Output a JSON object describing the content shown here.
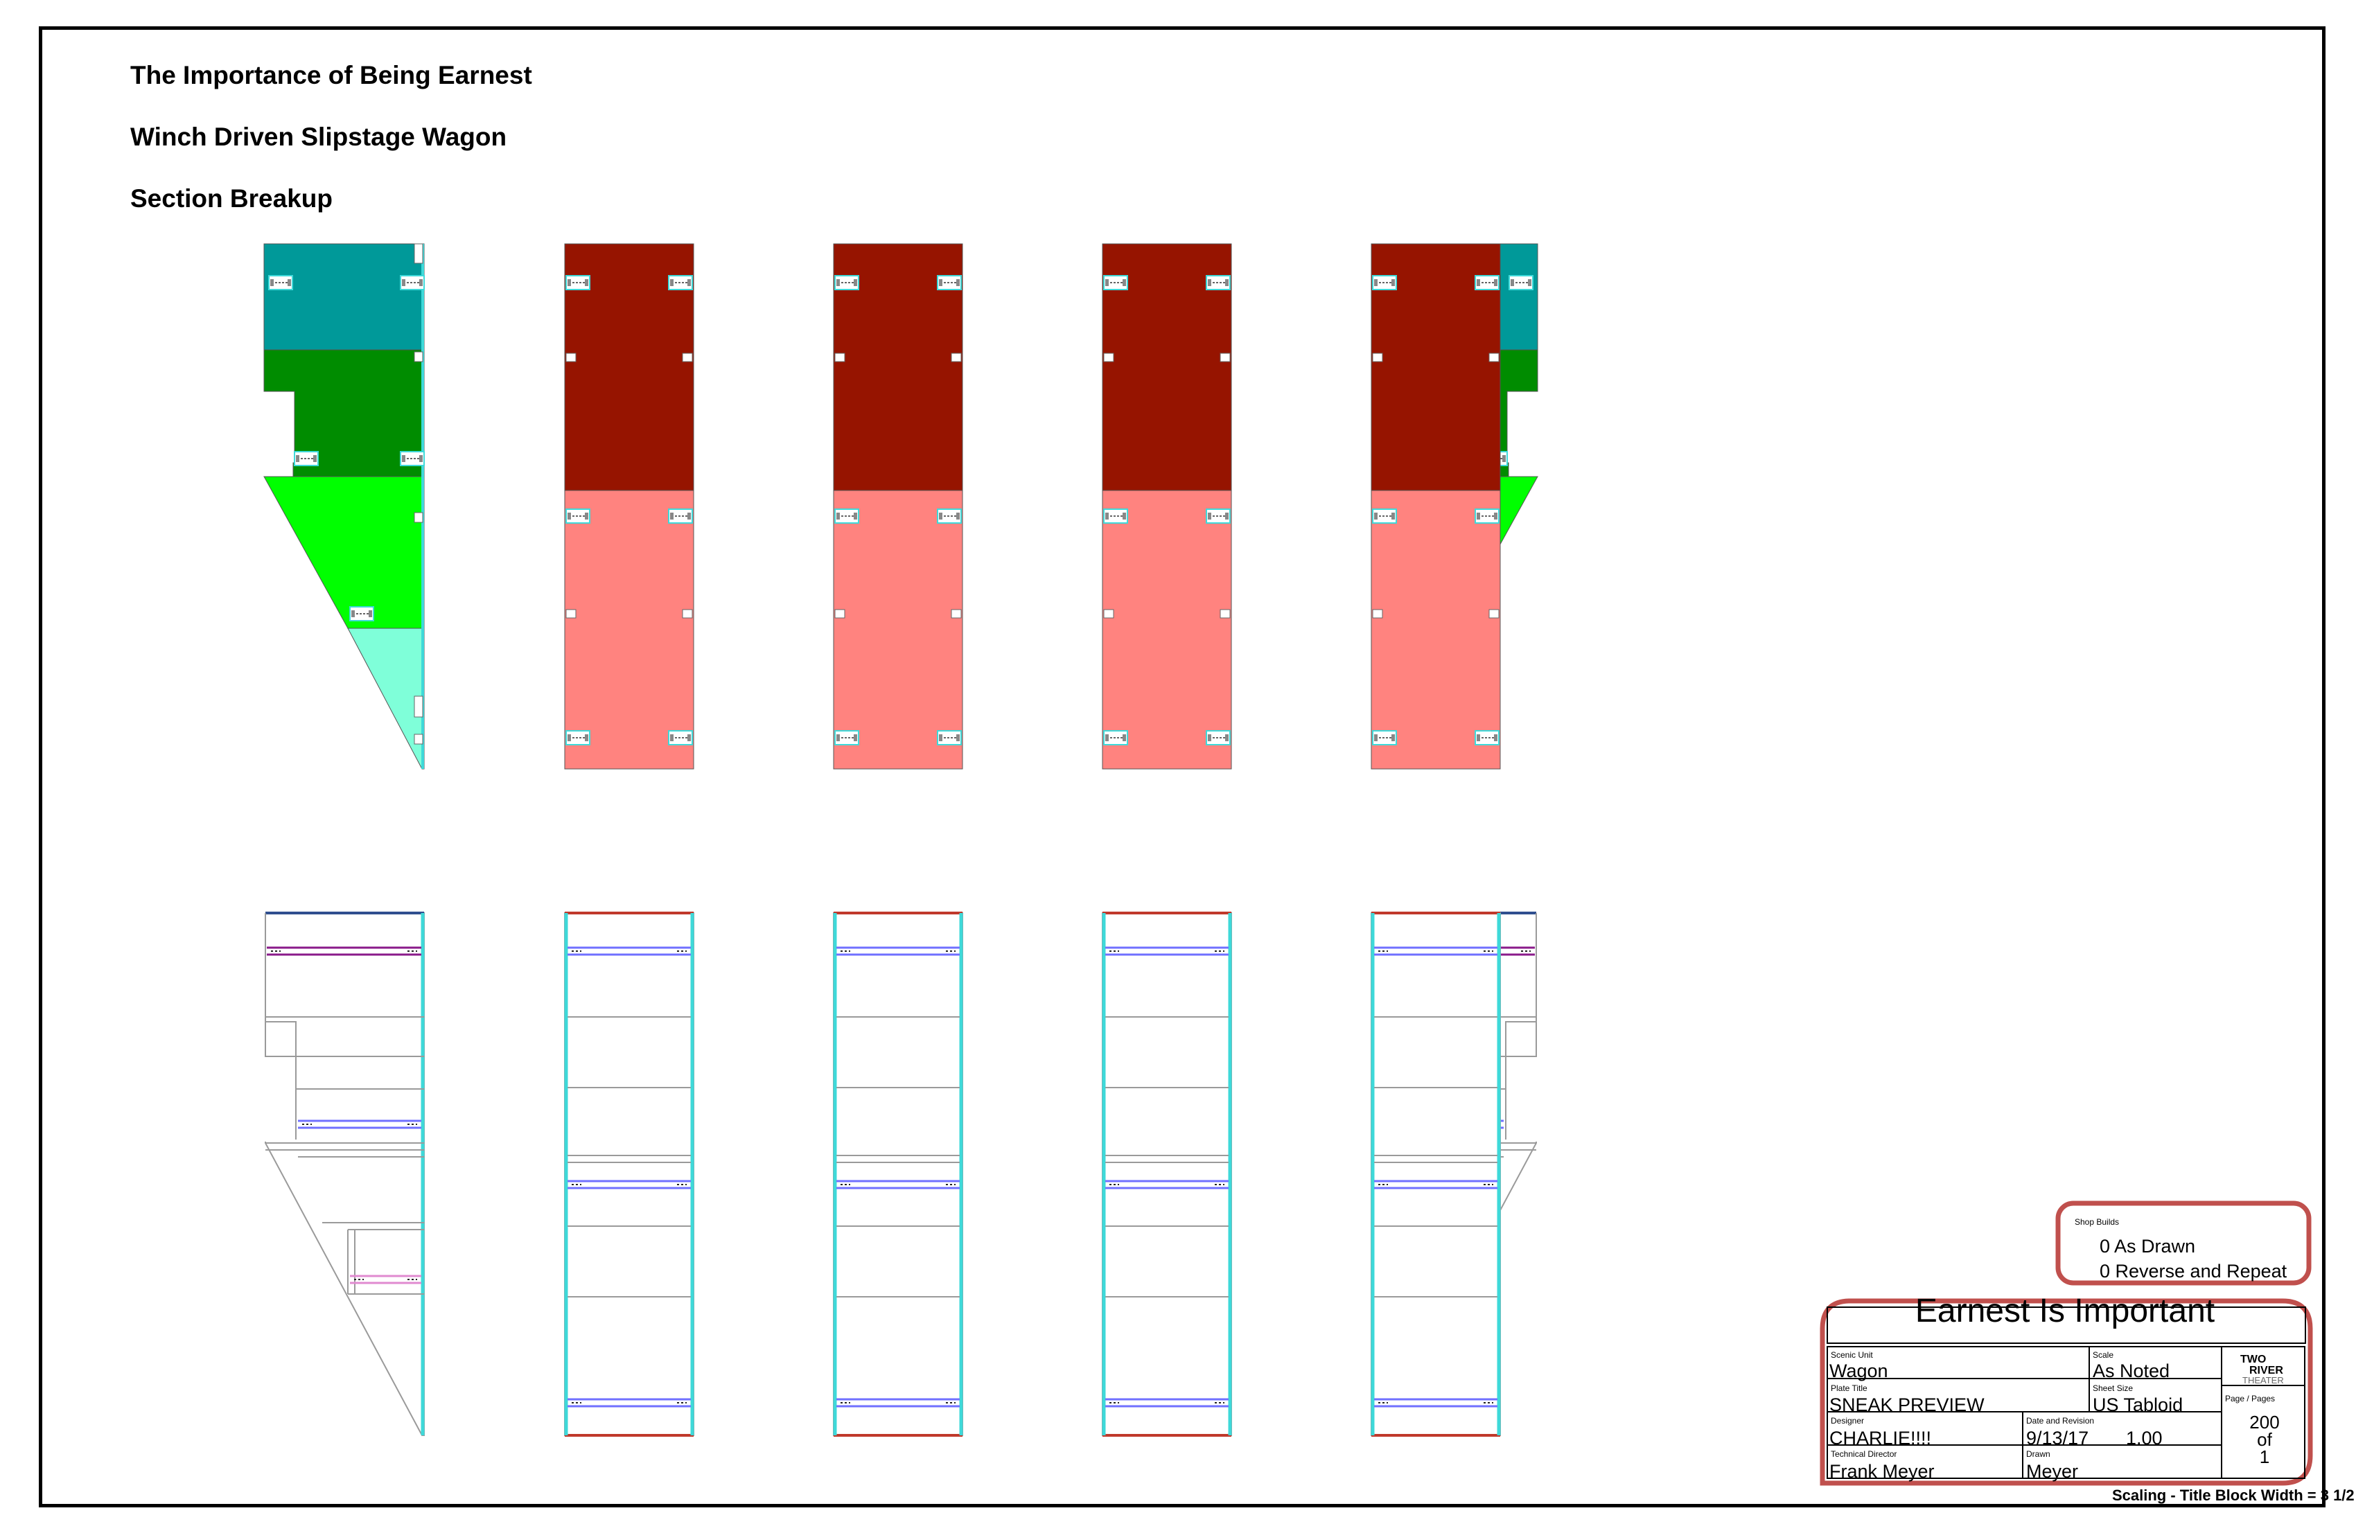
{
  "header": {
    "show_title": "The Importance of Being Earnest",
    "unit_title": "Winch Driven Slipstage Wagon",
    "sheet_title": "Section Breakup"
  },
  "shop_builds": {
    "label": "Shop Builds",
    "as_drawn": "0 As Drawn",
    "reverse_repeat": "0 Reverse and Repeat"
  },
  "title_block": {
    "show_name": "Earnest Is Important",
    "scenic_unit_label": "Scenic Unit",
    "scenic_unit": "Wagon",
    "scale_label": "Scale",
    "scale": "As Noted",
    "plate_title_label": "Plate Title",
    "plate_title": "SNEAK PREVIEW",
    "sheet_size_label": "Sheet Size",
    "sheet_size": "US Tabloid",
    "designer_label": "Designer",
    "designer": "CHARLIE!!!!",
    "date_label": "Date and Revision",
    "date": "9/13/17",
    "revision": "1.00",
    "td_label": "Technical Director",
    "td": "Frank Meyer",
    "drawn_label": "Drawn",
    "drawn": "Meyer",
    "page_label": "Page / Pages",
    "page": "200",
    "of": "of",
    "pages": "1",
    "logo_top": "TWO",
    "logo_mid": "RIVER",
    "logo_bottom": "THEATER"
  },
  "scale_note": "Scaling - Title Block Width = 3 1/2",
  "colors": {
    "teal": "#009999",
    "dark_green": "#008c00",
    "bright_green": "#00ff00",
    "aquamarine": "#7fffd9",
    "dark_red": "#961400",
    "salmon": "#ff837f",
    "frame_cyan": "#3ed9d9",
    "strap_blue": "#7070ff",
    "strap_purple": "#8a1a8a",
    "strap_pink": "#e08ad0",
    "title_block_red": "#c0504d"
  }
}
